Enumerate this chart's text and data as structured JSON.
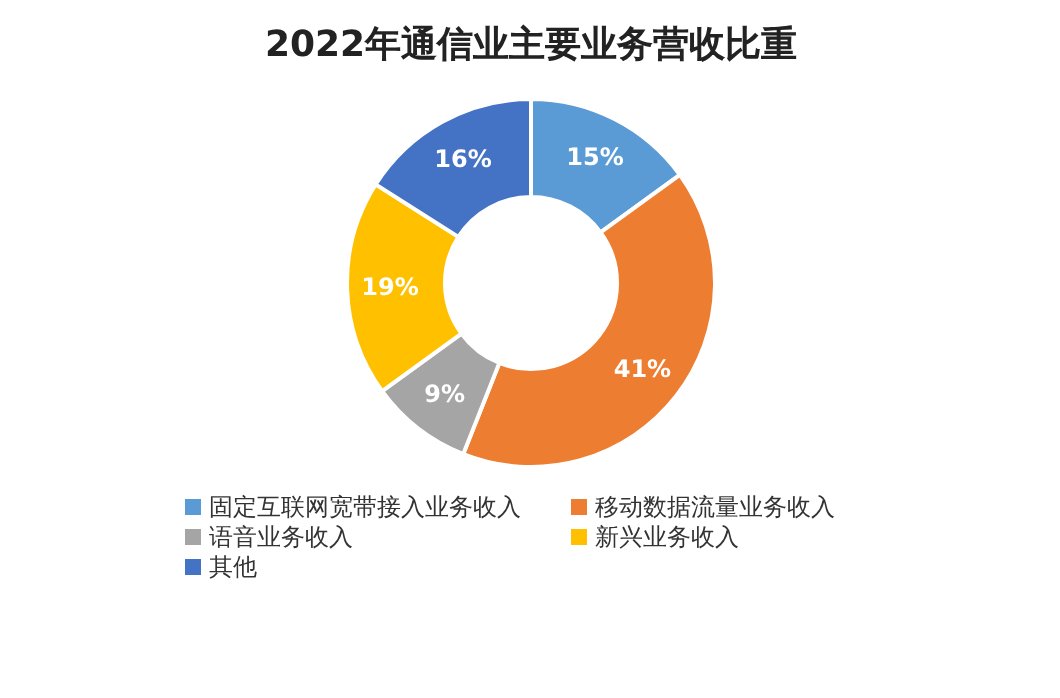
{
  "chart_data": {
    "type": "donut",
    "title": "2022年通信业主要业务营收比重",
    "categories": [
      "固定互联网宽带接入业务收入",
      "移动数据流量业务收入",
      "语音业务收入",
      "新兴业务收入",
      "其他"
    ],
    "values": [
      15,
      41,
      9,
      19,
      16
    ],
    "colors": [
      "#5b9bd5",
      "#ed7d31",
      "#a5a5a5",
      "#ffc000",
      "#4472c4"
    ],
    "value_labels": [
      "15%",
      "41%",
      "9%",
      "19%",
      "16%"
    ],
    "legend": "bottom"
  }
}
